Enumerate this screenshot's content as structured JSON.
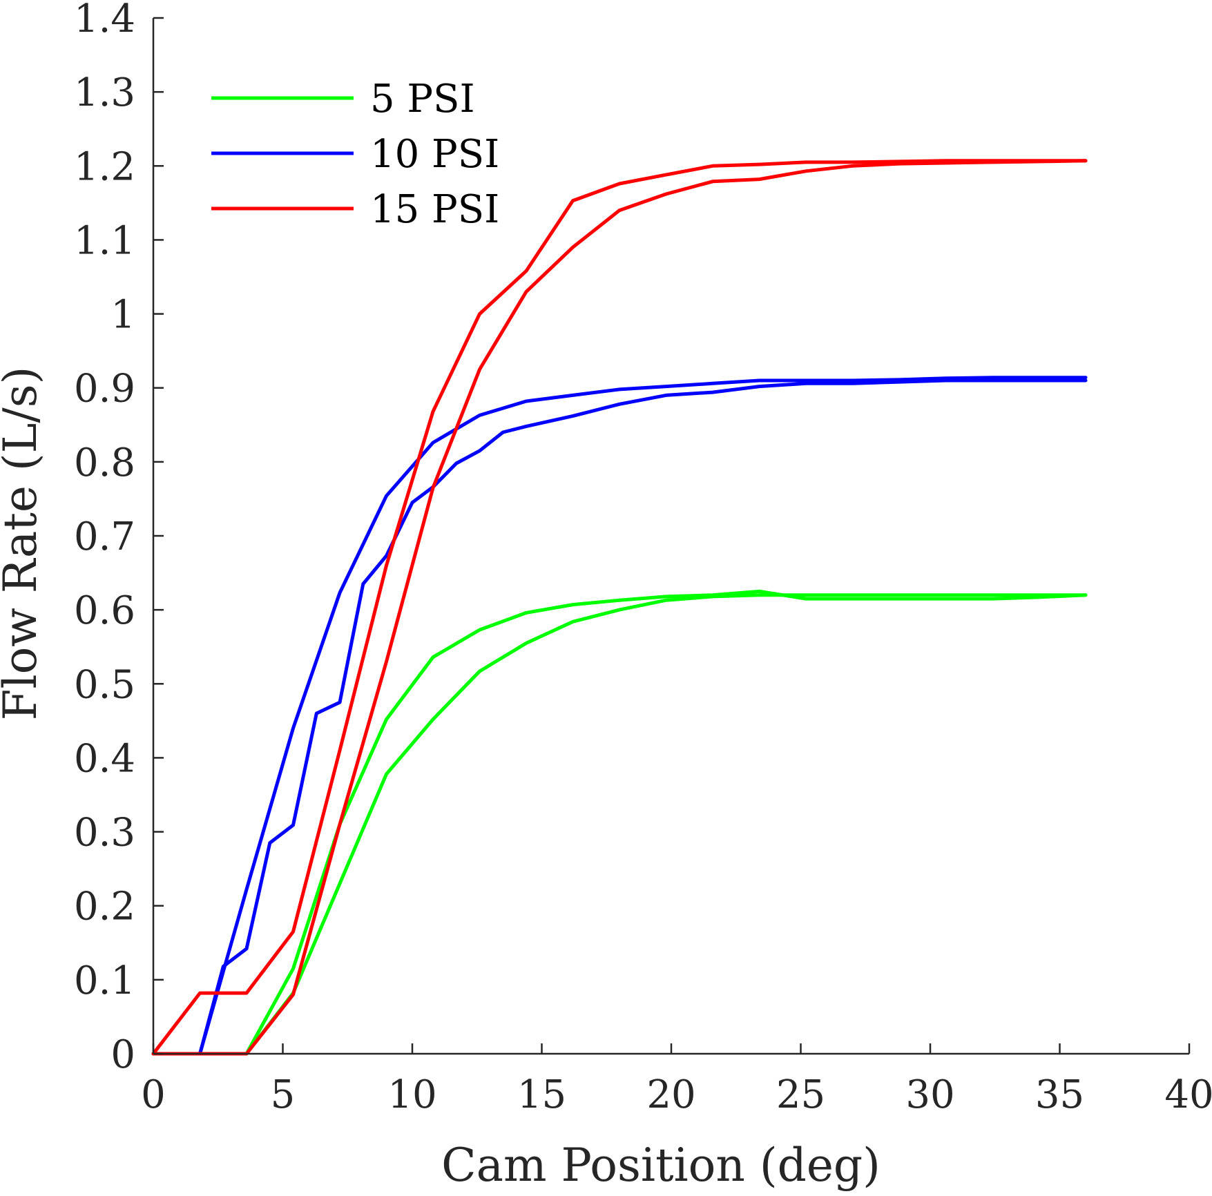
{
  "chart_data": {
    "type": "line",
    "xlabel": "Cam Position (deg)",
    "ylabel": "Flow Rate (L/s)",
    "xlim": [
      0,
      40
    ],
    "ylim": [
      0,
      1.4
    ],
    "xticks": [
      0,
      5,
      10,
      15,
      20,
      25,
      30,
      35,
      40
    ],
    "xtick_labels": [
      "0",
      "5",
      "10",
      "15",
      "20",
      "25",
      "30",
      "35",
      "40"
    ],
    "yticks": [
      0,
      0.1,
      0.2,
      0.3,
      0.4,
      0.5,
      0.6,
      0.7,
      0.8,
      0.9,
      1.0,
      1.1,
      1.2,
      1.3,
      1.4
    ],
    "ytick_labels": [
      "0",
      "0.1",
      "0.2",
      "0.3",
      "0.4",
      "0.5",
      "0.6",
      "0.7",
      "0.8",
      "0.9",
      "1",
      "1.1",
      "1.2",
      "1.3",
      "1.4"
    ],
    "grid": false,
    "legend_position": "top-left",
    "legend": [
      {
        "label": "5 PSI",
        "color": "#00ff00"
      },
      {
        "label": "10 PSI",
        "color": "#0000ff"
      },
      {
        "label": "15 PSI",
        "color": "#ff0000"
      }
    ],
    "series": [
      {
        "name": "5 PSI",
        "trace": "rising",
        "color": "#00ff00",
        "x": [
          0,
          3.6,
          5.4,
          7.2,
          9.0,
          10.8,
          12.6,
          14.4,
          16.2,
          18.0,
          19.8,
          21.6,
          23.4,
          25.2,
          27.0,
          28.8,
          30.6,
          32.4,
          34.2,
          36.0
        ],
        "y": [
          0,
          0,
          0.115,
          0.31,
          0.452,
          0.536,
          0.573,
          0.596,
          0.607,
          0.613,
          0.618,
          0.62,
          0.625,
          0.615,
          0.615,
          0.615,
          0.615,
          0.615,
          0.617,
          0.62
        ]
      },
      {
        "name": "5 PSI",
        "trace": "falling",
        "color": "#00ff00",
        "x": [
          36.0,
          34.2,
          32.4,
          30.6,
          28.8,
          27.0,
          25.2,
          23.4,
          21.6,
          19.8,
          18.0,
          16.2,
          14.4,
          12.6,
          10.8,
          9.0,
          7.2,
          5.4,
          3.6,
          0
        ],
        "y": [
          0.62,
          0.62,
          0.62,
          0.62,
          0.62,
          0.62,
          0.62,
          0.62,
          0.618,
          0.613,
          0.6,
          0.584,
          0.555,
          0.517,
          0.452,
          0.378,
          0.23,
          0.082,
          0,
          0
        ]
      },
      {
        "name": "10 PSI",
        "trace": "rising",
        "color": "#0000ff",
        "x": [
          0,
          1.8,
          2.7,
          3.6,
          4.5,
          5.4,
          6.3,
          7.2,
          8.1,
          9.0,
          10.0,
          10.8,
          11.7,
          12.6,
          13.5,
          14.4,
          16.2,
          18.0,
          19.8,
          21.6,
          23.4,
          25.2,
          27.0,
          28.8,
          30.6,
          32.4,
          34.2,
          36.0
        ],
        "y": [
          0,
          0,
          0.118,
          0.142,
          0.285,
          0.309,
          0.46,
          0.475,
          0.635,
          0.673,
          0.745,
          0.766,
          0.798,
          0.815,
          0.84,
          0.848,
          0.862,
          0.878,
          0.89,
          0.894,
          0.902,
          0.906,
          0.906,
          0.908,
          0.91,
          0.91,
          0.91,
          0.91
        ]
      },
      {
        "name": "10 PSI",
        "trace": "falling",
        "color": "#0000ff",
        "x": [
          36.0,
          34.2,
          32.4,
          30.6,
          28.8,
          27.0,
          25.2,
          23.4,
          21.6,
          19.8,
          18.0,
          16.2,
          14.4,
          12.6,
          10.8,
          9.0,
          7.2,
          5.4,
          3.6,
          1.8,
          0
        ],
        "y": [
          0.914,
          0.914,
          0.914,
          0.913,
          0.911,
          0.91,
          0.91,
          0.91,
          0.906,
          0.902,
          0.898,
          0.89,
          0.882,
          0.863,
          0.826,
          0.754,
          0.623,
          0.44,
          0.222,
          0,
          0
        ]
      },
      {
        "name": "15 PSI",
        "trace": "rising",
        "color": "#ff0000",
        "x": [
          0,
          1.8,
          2.7,
          3.6,
          5.4,
          7.2,
          9.0,
          10.8,
          12.6,
          14.4,
          16.2,
          18.0,
          19.8,
          21.6,
          23.4,
          25.2,
          27.0,
          28.8,
          30.6,
          32.4,
          34.2,
          36.0
        ],
        "y": [
          0,
          0.082,
          0.082,
          0.082,
          0.165,
          0.41,
          0.66,
          0.868,
          1.0,
          1.058,
          1.153,
          1.176,
          1.188,
          1.2,
          1.202,
          1.205,
          1.205,
          1.206,
          1.207,
          1.207,
          1.207,
          1.207
        ]
      },
      {
        "name": "15 PSI",
        "trace": "falling",
        "color": "#ff0000",
        "x": [
          36.0,
          34.2,
          32.4,
          30.6,
          28.8,
          27.0,
          25.2,
          23.4,
          21.6,
          19.8,
          18.0,
          16.2,
          14.4,
          12.6,
          10.8,
          9.0,
          7.2,
          5.4,
          3.6,
          1.8,
          0
        ],
        "y": [
          1.207,
          1.206,
          1.205,
          1.204,
          1.203,
          1.2,
          1.193,
          1.182,
          1.179,
          1.162,
          1.14,
          1.09,
          1.03,
          0.925,
          0.765,
          0.53,
          0.31,
          0.08,
          0,
          0,
          0
        ]
      }
    ]
  }
}
